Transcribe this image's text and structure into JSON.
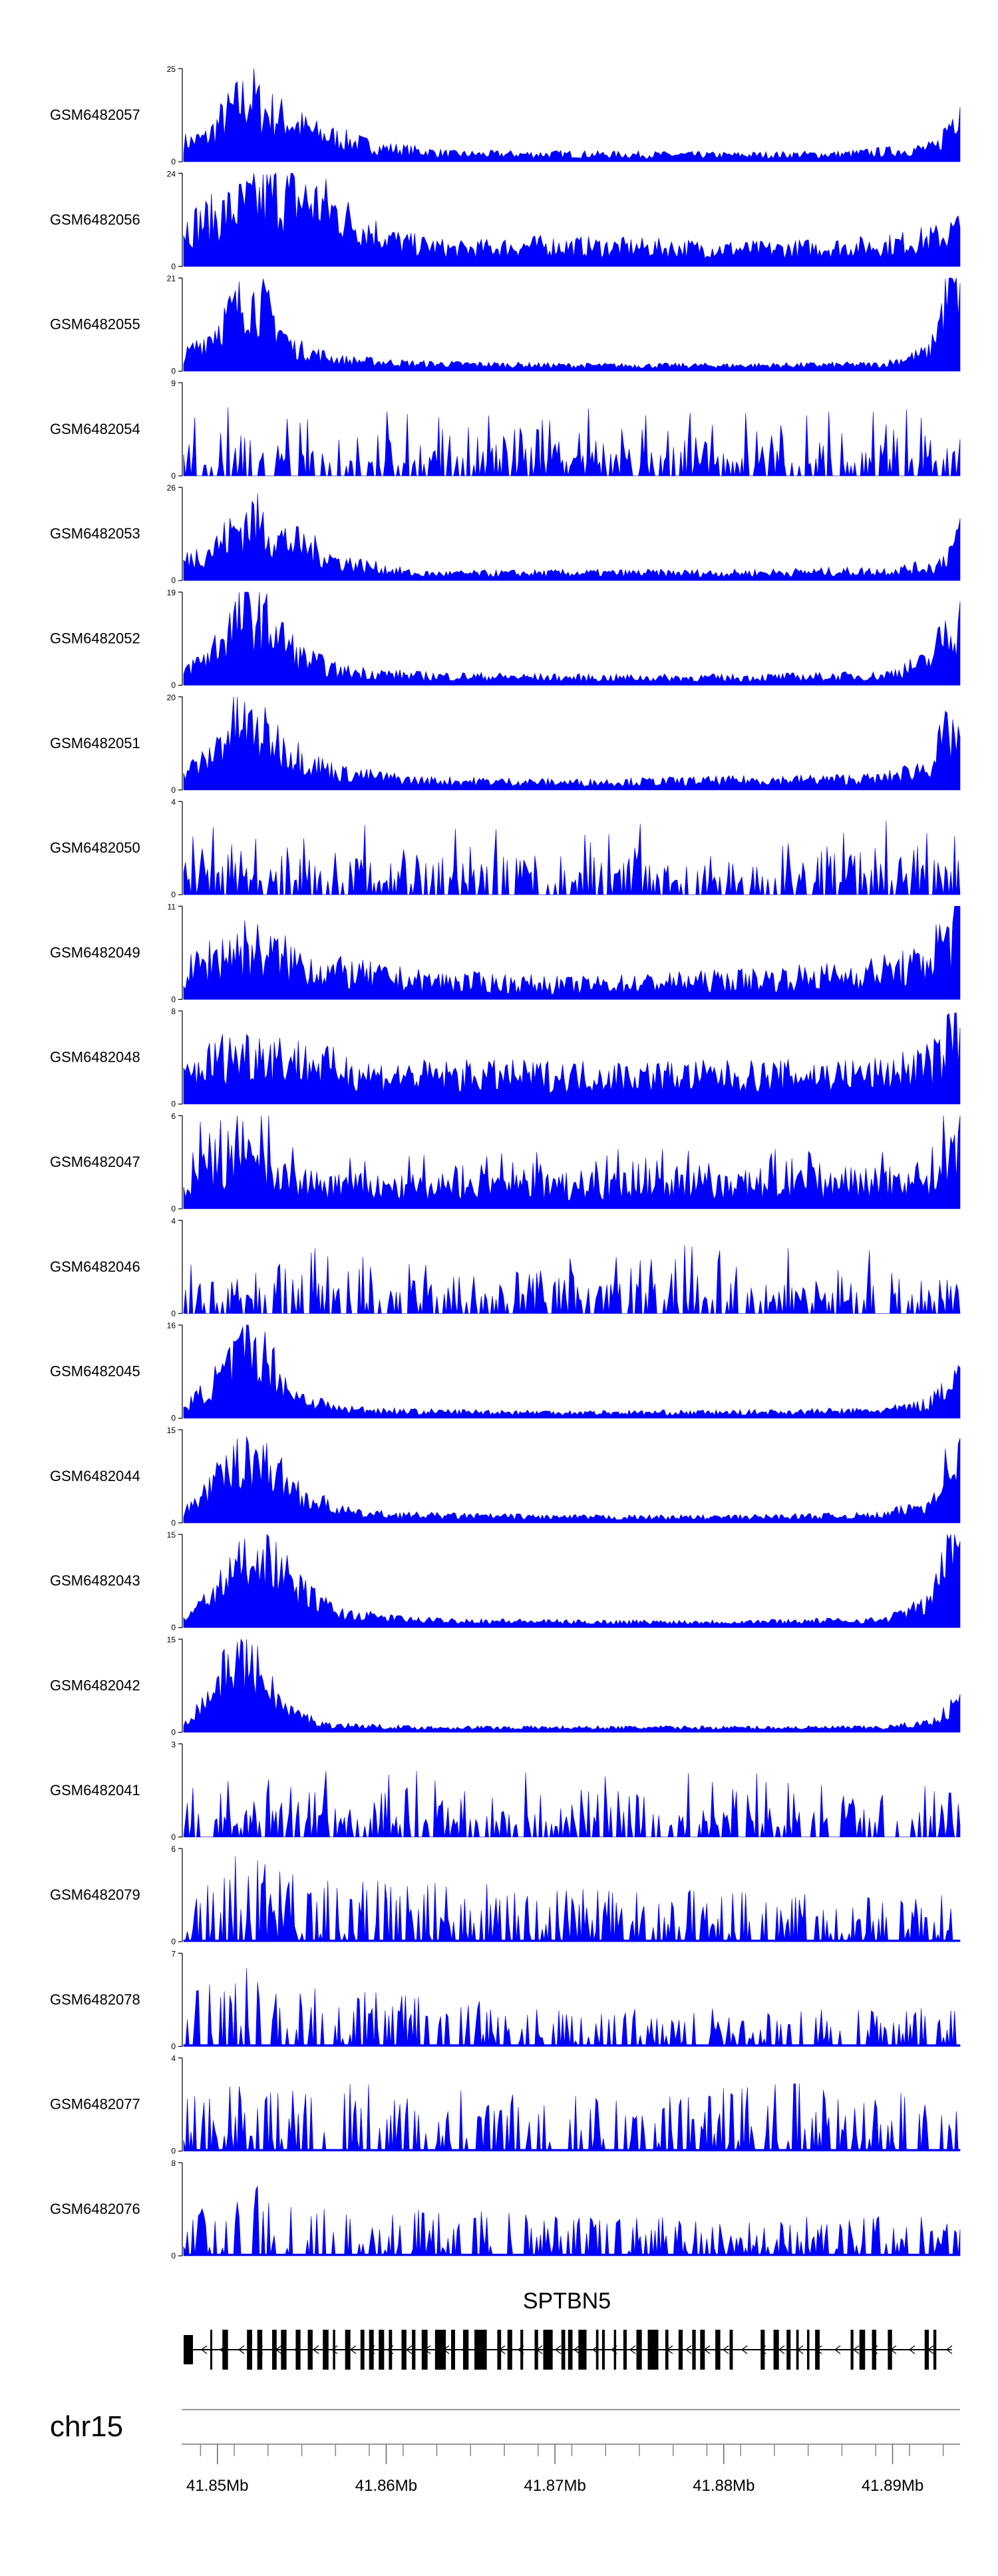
{
  "chart_data": {
    "type": "area",
    "fill_color": "#0000ff",
    "axis_color": "#000000",
    "x_unit": "Mb",
    "x_range": [
      41.848,
      41.894
    ],
    "x_ticks": [
      {
        "value": 41.85,
        "label": "41.85Mb"
      },
      {
        "value": 41.86,
        "label": "41.86Mb"
      },
      {
        "value": 41.87,
        "label": "41.87Mb"
      },
      {
        "value": 41.88,
        "label": "41.88Mb"
      },
      {
        "value": 41.89,
        "label": "41.89Mb"
      }
    ],
    "chromosome_label": "chr15",
    "gene": {
      "name": "SPTBN5",
      "strand": "-",
      "start": 41.848,
      "end": 41.8935
    },
    "tracks": [
      {
        "name": "GSM6482057",
        "ymax": 25,
        "ytick_labels": [
          "0",
          "25"
        ],
        "profile": [
          [
            0,
            0.2
          ],
          [
            0.03,
            0.25
          ],
          [
            0.05,
            0.45
          ],
          [
            0.07,
            0.6
          ],
          [
            0.09,
            0.7
          ],
          [
            0.1,
            0.55
          ],
          [
            0.13,
            0.45
          ],
          [
            0.17,
            0.3
          ],
          [
            0.25,
            0.15
          ],
          [
            0.35,
            0.08
          ],
          [
            0.5,
            0.08
          ],
          [
            0.7,
            0.07
          ],
          [
            0.85,
            0.08
          ],
          [
            0.93,
            0.12
          ],
          [
            0.97,
            0.15
          ],
          [
            0.99,
            0.45
          ],
          [
            1,
            0.7
          ]
        ],
        "noise": 0.55,
        "style": "dense"
      },
      {
        "name": "GSM6482056",
        "ymax": 24,
        "ytick_labels": [
          "0",
          "24"
        ],
        "profile": [
          [
            0,
            0.4
          ],
          [
            0.05,
            0.55
          ],
          [
            0.08,
            0.65
          ],
          [
            0.12,
            0.75
          ],
          [
            0.18,
            0.65
          ],
          [
            0.22,
            0.45
          ],
          [
            0.28,
            0.25
          ],
          [
            0.35,
            0.18
          ],
          [
            0.45,
            0.22
          ],
          [
            0.6,
            0.2
          ],
          [
            0.75,
            0.18
          ],
          [
            0.9,
            0.22
          ],
          [
            0.97,
            0.3
          ],
          [
            1,
            0.4
          ]
        ],
        "noise": 0.55,
        "style": "dense"
      },
      {
        "name": "GSM6482055",
        "ymax": 21,
        "ytick_labels": [
          "0",
          "21"
        ],
        "profile": [
          [
            0,
            0.15
          ],
          [
            0.03,
            0.35
          ],
          [
            0.06,
            0.6
          ],
          [
            0.08,
            0.75
          ],
          [
            0.1,
            0.7
          ],
          [
            0.12,
            0.5
          ],
          [
            0.14,
            0.25
          ],
          [
            0.2,
            0.12
          ],
          [
            0.3,
            0.08
          ],
          [
            0.5,
            0.06
          ],
          [
            0.7,
            0.06
          ],
          [
            0.9,
            0.07
          ],
          [
            0.96,
            0.2
          ],
          [
            0.98,
            0.7
          ],
          [
            1,
            0.95
          ]
        ],
        "noise": 0.5,
        "style": "dense"
      },
      {
        "name": "GSM6482054",
        "ymax": 9,
        "ytick_labels": [
          "0",
          "9"
        ],
        "profile": [
          [
            0,
            0.4
          ],
          [
            0.5,
            0.4
          ],
          [
            1,
            0.45
          ]
        ],
        "noise": 1.0,
        "style": "sparse"
      },
      {
        "name": "GSM6482053",
        "ymax": 26,
        "ytick_labels": [
          "0",
          "26"
        ],
        "profile": [
          [
            0,
            0.2
          ],
          [
            0.04,
            0.35
          ],
          [
            0.07,
            0.55
          ],
          [
            0.09,
            0.65
          ],
          [
            0.12,
            0.45
          ],
          [
            0.16,
            0.35
          ],
          [
            0.2,
            0.2
          ],
          [
            0.3,
            0.07
          ],
          [
            0.5,
            0.08
          ],
          [
            0.7,
            0.08
          ],
          [
            0.9,
            0.1
          ],
          [
            0.97,
            0.15
          ],
          [
            1,
            0.45
          ]
        ],
        "noise": 0.55,
        "style": "dense"
      },
      {
        "name": "GSM6482052",
        "ymax": 19,
        "ytick_labels": [
          "0",
          "19"
        ],
        "profile": [
          [
            0,
            0.15
          ],
          [
            0.03,
            0.3
          ],
          [
            0.06,
            0.6
          ],
          [
            0.08,
            0.75
          ],
          [
            0.1,
            0.7
          ],
          [
            0.12,
            0.55
          ],
          [
            0.15,
            0.3
          ],
          [
            0.2,
            0.15
          ],
          [
            0.3,
            0.1
          ],
          [
            0.5,
            0.08
          ],
          [
            0.7,
            0.08
          ],
          [
            0.9,
            0.1
          ],
          [
            0.96,
            0.25
          ],
          [
            0.98,
            0.55
          ],
          [
            1,
            0.65
          ]
        ],
        "noise": 0.55,
        "style": "dense"
      },
      {
        "name": "GSM6482051",
        "ymax": 20,
        "ytick_labels": [
          "0",
          "20"
        ],
        "profile": [
          [
            0,
            0.2
          ],
          [
            0.03,
            0.3
          ],
          [
            0.05,
            0.55
          ],
          [
            0.07,
            0.7
          ],
          [
            0.1,
            0.6
          ],
          [
            0.13,
            0.45
          ],
          [
            0.16,
            0.3
          ],
          [
            0.2,
            0.18
          ],
          [
            0.3,
            0.1
          ],
          [
            0.5,
            0.08
          ],
          [
            0.7,
            0.1
          ],
          [
            0.9,
            0.12
          ],
          [
            0.96,
            0.25
          ],
          [
            0.98,
            0.55
          ],
          [
            1,
            0.6
          ]
        ],
        "noise": 0.55,
        "style": "dense"
      },
      {
        "name": "GSM6482050",
        "ymax": 4,
        "ytick_labels": [
          "0",
          "4"
        ],
        "profile": [
          [
            0,
            0.45
          ],
          [
            1,
            0.45
          ]
        ],
        "noise": 1.0,
        "style": "sparse"
      },
      {
        "name": "GSM6482049",
        "ymax": 11,
        "ytick_labels": [
          "0",
          "11"
        ],
        "profile": [
          [
            0,
            0.25
          ],
          [
            0.04,
            0.45
          ],
          [
            0.08,
            0.55
          ],
          [
            0.12,
            0.45
          ],
          [
            0.18,
            0.3
          ],
          [
            0.3,
            0.2
          ],
          [
            0.5,
            0.15
          ],
          [
            0.7,
            0.2
          ],
          [
            0.85,
            0.25
          ],
          [
            0.95,
            0.35
          ],
          [
            1,
            0.85
          ]
        ],
        "noise": 0.65,
        "style": "dense"
      },
      {
        "name": "GSM6482048",
        "ymax": 8,
        "ytick_labels": [
          "0",
          "8"
        ],
        "profile": [
          [
            0,
            0.3
          ],
          [
            0.05,
            0.5
          ],
          [
            0.1,
            0.55
          ],
          [
            0.15,
            0.45
          ],
          [
            0.25,
            0.3
          ],
          [
            0.5,
            0.3
          ],
          [
            0.75,
            0.3
          ],
          [
            0.9,
            0.32
          ],
          [
            0.97,
            0.45
          ],
          [
            1,
            0.85
          ]
        ],
        "noise": 0.6,
        "style": "dense"
      },
      {
        "name": "GSM6482047",
        "ymax": 6,
        "ytick_labels": [
          "0",
          "6"
        ],
        "profile": [
          [
            0,
            0.35
          ],
          [
            0.04,
            0.65
          ],
          [
            0.07,
            0.75
          ],
          [
            0.1,
            0.6
          ],
          [
            0.15,
            0.35
          ],
          [
            0.3,
            0.3
          ],
          [
            0.5,
            0.35
          ],
          [
            0.7,
            0.35
          ],
          [
            0.85,
            0.35
          ],
          [
            0.95,
            0.45
          ],
          [
            1,
            0.85
          ]
        ],
        "noise": 0.75,
        "style": "mixed"
      },
      {
        "name": "GSM6482046",
        "ymax": 4,
        "ytick_labels": [
          "0",
          "4"
        ],
        "profile": [
          [
            0,
            0.45
          ],
          [
            1,
            0.45
          ]
        ],
        "noise": 1.0,
        "style": "sparse"
      },
      {
        "name": "GSM6482045",
        "ymax": 16,
        "ytick_labels": [
          "0",
          "16"
        ],
        "profile": [
          [
            0,
            0.1
          ],
          [
            0.03,
            0.3
          ],
          [
            0.06,
            0.55
          ],
          [
            0.08,
            0.75
          ],
          [
            0.1,
            0.7
          ],
          [
            0.12,
            0.5
          ],
          [
            0.14,
            0.25
          ],
          [
            0.2,
            0.1
          ],
          [
            0.3,
            0.07
          ],
          [
            0.5,
            0.06
          ],
          [
            0.7,
            0.06
          ],
          [
            0.9,
            0.08
          ],
          [
            0.96,
            0.15
          ],
          [
            0.98,
            0.35
          ],
          [
            1,
            0.5
          ]
        ],
        "noise": 0.5,
        "style": "dense"
      },
      {
        "name": "GSM6482044",
        "ymax": 15,
        "ytick_labels": [
          "0",
          "15"
        ],
        "profile": [
          [
            0,
            0.1
          ],
          [
            0.03,
            0.35
          ],
          [
            0.06,
            0.55
          ],
          [
            0.08,
            0.75
          ],
          [
            0.1,
            0.65
          ],
          [
            0.13,
            0.45
          ],
          [
            0.16,
            0.25
          ],
          [
            0.22,
            0.1
          ],
          [
            0.3,
            0.08
          ],
          [
            0.5,
            0.06
          ],
          [
            0.7,
            0.06
          ],
          [
            0.9,
            0.08
          ],
          [
            0.96,
            0.2
          ],
          [
            0.98,
            0.55
          ],
          [
            1,
            0.7
          ]
        ],
        "noise": 0.5,
        "style": "dense"
      },
      {
        "name": "GSM6482043",
        "ymax": 15,
        "ytick_labels": [
          "0",
          "15"
        ],
        "profile": [
          [
            0,
            0.08
          ],
          [
            0.03,
            0.3
          ],
          [
            0.06,
            0.55
          ],
          [
            0.08,
            0.75
          ],
          [
            0.1,
            0.8
          ],
          [
            0.12,
            0.65
          ],
          [
            0.15,
            0.4
          ],
          [
            0.2,
            0.15
          ],
          [
            0.3,
            0.08
          ],
          [
            0.5,
            0.06
          ],
          [
            0.7,
            0.06
          ],
          [
            0.9,
            0.08
          ],
          [
            0.96,
            0.25
          ],
          [
            0.98,
            0.75
          ],
          [
            1,
            0.95
          ]
        ],
        "noise": 0.45,
        "style": "dense"
      },
      {
        "name": "GSM6482042",
        "ymax": 15,
        "ytick_labels": [
          "0",
          "15"
        ],
        "profile": [
          [
            0,
            0.1
          ],
          [
            0.03,
            0.35
          ],
          [
            0.05,
            0.6
          ],
          [
            0.07,
            0.8
          ],
          [
            0.09,
            0.7
          ],
          [
            0.11,
            0.5
          ],
          [
            0.13,
            0.25
          ],
          [
            0.18,
            0.08
          ],
          [
            0.3,
            0.05
          ],
          [
            0.5,
            0.05
          ],
          [
            0.7,
            0.05
          ],
          [
            0.9,
            0.05
          ],
          [
            0.96,
            0.1
          ],
          [
            0.98,
            0.2
          ],
          [
            1,
            0.35
          ]
        ],
        "noise": 0.45,
        "style": "dense"
      },
      {
        "name": "GSM6482041",
        "ymax": 3,
        "ytick_labels": [
          "0",
          "3"
        ],
        "profile": [
          [
            0,
            0.4
          ],
          [
            1,
            0.4
          ]
        ],
        "noise": 1.0,
        "style": "sparse"
      },
      {
        "name": "GSM6482079",
        "ymax": 6,
        "ytick_labels": [
          "0",
          "6"
        ],
        "profile": [
          [
            0,
            0.35
          ],
          [
            0.05,
            0.55
          ],
          [
            0.1,
            0.6
          ],
          [
            0.15,
            0.4
          ],
          [
            0.5,
            0.35
          ],
          [
            1,
            0.3
          ]
        ],
        "noise": 0.9,
        "style": "peaks"
      },
      {
        "name": "GSM6482078",
        "ymax": 7,
        "ytick_labels": [
          "0",
          "7"
        ],
        "profile": [
          [
            0,
            0.3
          ],
          [
            0.05,
            0.5
          ],
          [
            0.08,
            0.6
          ],
          [
            0.12,
            0.4
          ],
          [
            0.5,
            0.25
          ],
          [
            1,
            0.25
          ]
        ],
        "noise": 0.9,
        "style": "peaks"
      },
      {
        "name": "GSM6482077",
        "ymax": 4,
        "ytick_labels": [
          "0",
          "4"
        ],
        "profile": [
          [
            0,
            0.45
          ],
          [
            0.5,
            0.4
          ],
          [
            1,
            0.45
          ]
        ],
        "noise": 0.9,
        "style": "peaks"
      },
      {
        "name": "GSM6482076",
        "ymax": 8,
        "ytick_labels": [
          "0",
          "8"
        ],
        "profile": [
          [
            0,
            0.25
          ],
          [
            0.07,
            0.45
          ],
          [
            0.09,
            0.6
          ],
          [
            0.12,
            0.35
          ],
          [
            0.5,
            0.25
          ],
          [
            1,
            0.25
          ]
        ],
        "noise": 0.9,
        "style": "peaks"
      }
    ]
  }
}
